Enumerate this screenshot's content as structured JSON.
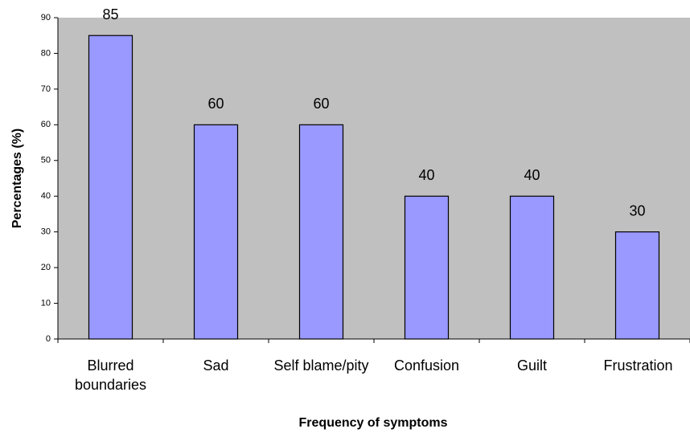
{
  "chart_data": {
    "type": "bar",
    "categories": [
      "Blurred boundaries",
      "Sad",
      "Self blame/pity",
      "Confusion",
      "Guilt",
      "Frustration"
    ],
    "values": [
      85,
      60,
      60,
      40,
      40,
      30
    ],
    "color": "#9999ff",
    "background": "#c0c0c0",
    "ylabel": "Percentages (%)",
    "xlabel": "Frequency of symptoms",
    "ylim": [
      0,
      90
    ],
    "yticks": [
      0,
      10,
      20,
      30,
      40,
      50,
      60,
      70,
      80,
      90
    ],
    "grid": false
  }
}
